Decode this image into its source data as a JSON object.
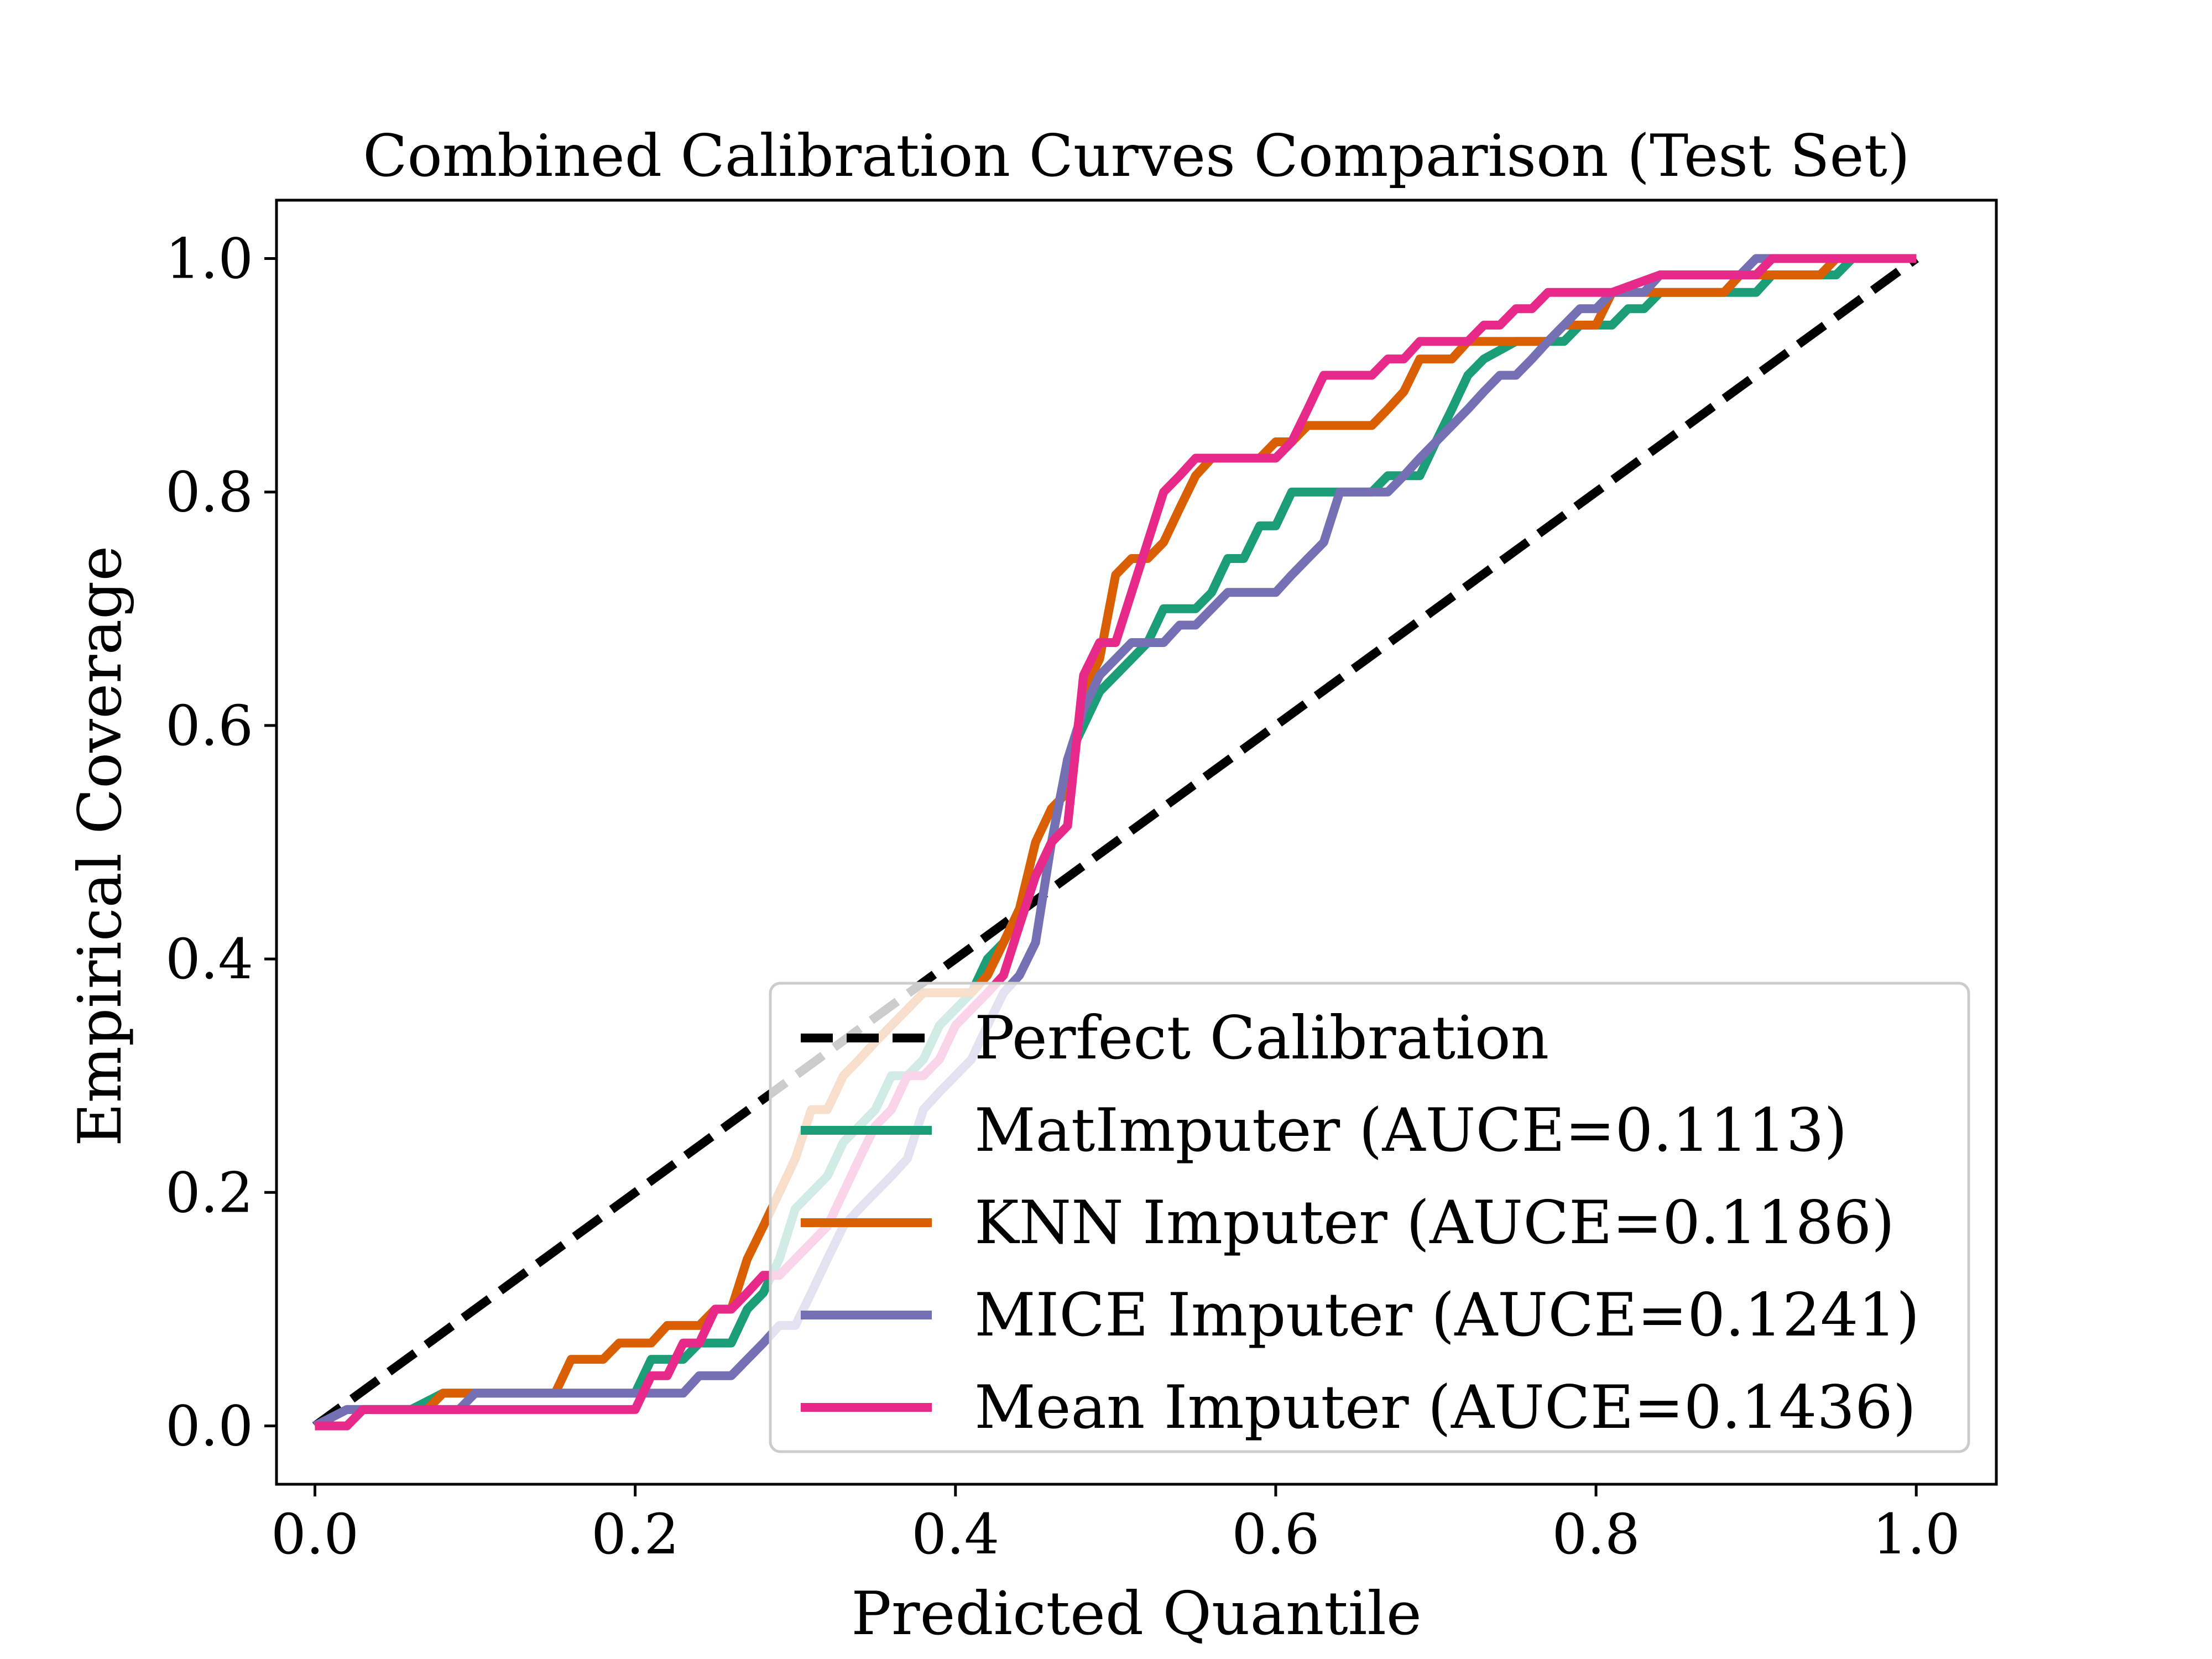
{
  "chart_data": {
    "type": "line",
    "title": "Combined Calibration Curves Comparison (Test Set)",
    "xlabel": "Predicted Quantile",
    "ylabel": "Empirical Coverage",
    "xlim": [
      -0.024,
      1.05
    ],
    "ylim": [
      -0.05,
      1.05
    ],
    "x_ticks": [
      0.0,
      0.2,
      0.4,
      0.6,
      0.8,
      1.0
    ],
    "x_tick_labels": [
      "0.0",
      "0.2",
      "0.4",
      "0.6",
      "0.8",
      "1.0"
    ],
    "y_ticks": [
      0.0,
      0.2,
      0.4,
      0.6,
      0.8,
      1.0
    ],
    "y_tick_labels": [
      "0.0",
      "0.2",
      "0.4",
      "0.6",
      "0.8",
      "1.0"
    ],
    "grid": false,
    "legend_position": "lower-right",
    "series": [
      {
        "name": "Perfect Calibration",
        "color": "#000000",
        "style": "dashed",
        "points": [
          [
            0.0,
            0.0
          ],
          [
            1.0,
            1.0
          ]
        ]
      },
      {
        "name": "MatImputer (AUCE=0.1113)",
        "color": "#1b9e77",
        "style": "solid",
        "points": [
          [
            0.0,
            0.0
          ],
          [
            0.02,
            0.014
          ],
          [
            0.04,
            0.014
          ],
          [
            0.06,
            0.014
          ],
          [
            0.08,
            0.028
          ],
          [
            0.1,
            0.028
          ],
          [
            0.12,
            0.028
          ],
          [
            0.14,
            0.028
          ],
          [
            0.16,
            0.028
          ],
          [
            0.18,
            0.028
          ],
          [
            0.2,
            0.028
          ],
          [
            0.21,
            0.057
          ],
          [
            0.22,
            0.057
          ],
          [
            0.23,
            0.057
          ],
          [
            0.24,
            0.071
          ],
          [
            0.26,
            0.071
          ],
          [
            0.27,
            0.1
          ],
          [
            0.28,
            0.114
          ],
          [
            0.29,
            0.143
          ],
          [
            0.3,
            0.186
          ],
          [
            0.31,
            0.2
          ],
          [
            0.32,
            0.214
          ],
          [
            0.33,
            0.243
          ],
          [
            0.34,
            0.257
          ],
          [
            0.35,
            0.271
          ],
          [
            0.36,
            0.3
          ],
          [
            0.37,
            0.3
          ],
          [
            0.38,
            0.314
          ],
          [
            0.39,
            0.343
          ],
          [
            0.4,
            0.357
          ],
          [
            0.41,
            0.371
          ],
          [
            0.42,
            0.4
          ],
          [
            0.43,
            0.414
          ],
          [
            0.44,
            0.443
          ],
          [
            0.45,
            0.471
          ],
          [
            0.46,
            0.5
          ],
          [
            0.47,
            0.571
          ],
          [
            0.48,
            0.6
          ],
          [
            0.49,
            0.629
          ],
          [
            0.5,
            0.643
          ],
          [
            0.52,
            0.671
          ],
          [
            0.53,
            0.7
          ],
          [
            0.55,
            0.7
          ],
          [
            0.56,
            0.714
          ],
          [
            0.57,
            0.743
          ],
          [
            0.58,
            0.743
          ],
          [
            0.59,
            0.771
          ],
          [
            0.6,
            0.771
          ],
          [
            0.61,
            0.8
          ],
          [
            0.63,
            0.8
          ],
          [
            0.66,
            0.8
          ],
          [
            0.67,
            0.814
          ],
          [
            0.69,
            0.814
          ],
          [
            0.7,
            0.843
          ],
          [
            0.71,
            0.871
          ],
          [
            0.72,
            0.9
          ],
          [
            0.73,
            0.914
          ],
          [
            0.75,
            0.929
          ],
          [
            0.77,
            0.929
          ],
          [
            0.78,
            0.929
          ],
          [
            0.79,
            0.943
          ],
          [
            0.81,
            0.943
          ],
          [
            0.82,
            0.957
          ],
          [
            0.83,
            0.957
          ],
          [
            0.84,
            0.971
          ],
          [
            0.86,
            0.971
          ],
          [
            0.9,
            0.971
          ],
          [
            0.91,
            0.986
          ],
          [
            0.95,
            0.986
          ],
          [
            0.96,
            1.0
          ],
          [
            1.0,
            1.0
          ]
        ]
      },
      {
        "name": "KNN Imputer (AUCE=0.1186)",
        "color": "#d95f02",
        "style": "solid",
        "points": [
          [
            0.0,
            0.0
          ],
          [
            0.02,
            0.0
          ],
          [
            0.03,
            0.014
          ],
          [
            0.05,
            0.014
          ],
          [
            0.07,
            0.014
          ],
          [
            0.08,
            0.028
          ],
          [
            0.1,
            0.028
          ],
          [
            0.14,
            0.028
          ],
          [
            0.15,
            0.028
          ],
          [
            0.16,
            0.057
          ],
          [
            0.18,
            0.057
          ],
          [
            0.19,
            0.071
          ],
          [
            0.21,
            0.071
          ],
          [
            0.22,
            0.086
          ],
          [
            0.24,
            0.086
          ],
          [
            0.25,
            0.1
          ],
          [
            0.26,
            0.1
          ],
          [
            0.27,
            0.143
          ],
          [
            0.28,
            0.171
          ],
          [
            0.29,
            0.2
          ],
          [
            0.3,
            0.229
          ],
          [
            0.31,
            0.271
          ],
          [
            0.32,
            0.271
          ],
          [
            0.33,
            0.3
          ],
          [
            0.34,
            0.314
          ],
          [
            0.35,
            0.329
          ],
          [
            0.36,
            0.343
          ],
          [
            0.37,
            0.357
          ],
          [
            0.38,
            0.371
          ],
          [
            0.39,
            0.371
          ],
          [
            0.4,
            0.371
          ],
          [
            0.41,
            0.371
          ],
          [
            0.42,
            0.386
          ],
          [
            0.43,
            0.414
          ],
          [
            0.44,
            0.443
          ],
          [
            0.45,
            0.5
          ],
          [
            0.46,
            0.529
          ],
          [
            0.47,
            0.543
          ],
          [
            0.48,
            0.629
          ],
          [
            0.49,
            0.657
          ],
          [
            0.5,
            0.729
          ],
          [
            0.51,
            0.743
          ],
          [
            0.52,
            0.743
          ],
          [
            0.53,
            0.757
          ],
          [
            0.54,
            0.786
          ],
          [
            0.55,
            0.814
          ],
          [
            0.56,
            0.829
          ],
          [
            0.58,
            0.829
          ],
          [
            0.59,
            0.829
          ],
          [
            0.6,
            0.843
          ],
          [
            0.61,
            0.843
          ],
          [
            0.62,
            0.857
          ],
          [
            0.64,
            0.857
          ],
          [
            0.66,
            0.857
          ],
          [
            0.67,
            0.871
          ],
          [
            0.68,
            0.886
          ],
          [
            0.69,
            0.914
          ],
          [
            0.71,
            0.914
          ],
          [
            0.72,
            0.929
          ],
          [
            0.74,
            0.929
          ],
          [
            0.77,
            0.929
          ],
          [
            0.78,
            0.943
          ],
          [
            0.8,
            0.943
          ],
          [
            0.81,
            0.971
          ],
          [
            0.83,
            0.971
          ],
          [
            0.85,
            0.971
          ],
          [
            0.86,
            0.971
          ],
          [
            0.88,
            0.971
          ],
          [
            0.89,
            0.986
          ],
          [
            0.92,
            0.986
          ],
          [
            0.94,
            0.986
          ],
          [
            0.95,
            1.0
          ],
          [
            1.0,
            1.0
          ]
        ]
      },
      {
        "name": "MICE Imputer (AUCE=0.1241)",
        "color": "#7570b3",
        "style": "solid",
        "points": [
          [
            0.0,
            0.0
          ],
          [
            0.02,
            0.014
          ],
          [
            0.04,
            0.014
          ],
          [
            0.06,
            0.014
          ],
          [
            0.08,
            0.014
          ],
          [
            0.09,
            0.014
          ],
          [
            0.1,
            0.028
          ],
          [
            0.12,
            0.028
          ],
          [
            0.16,
            0.028
          ],
          [
            0.2,
            0.028
          ],
          [
            0.22,
            0.028
          ],
          [
            0.23,
            0.028
          ],
          [
            0.24,
            0.043
          ],
          [
            0.26,
            0.043
          ],
          [
            0.27,
            0.057
          ],
          [
            0.28,
            0.071
          ],
          [
            0.29,
            0.086
          ],
          [
            0.3,
            0.086
          ],
          [
            0.31,
            0.114
          ],
          [
            0.32,
            0.143
          ],
          [
            0.33,
            0.171
          ],
          [
            0.34,
            0.186
          ],
          [
            0.35,
            0.2
          ],
          [
            0.36,
            0.214
          ],
          [
            0.37,
            0.229
          ],
          [
            0.38,
            0.271
          ],
          [
            0.39,
            0.286
          ],
          [
            0.4,
            0.3
          ],
          [
            0.41,
            0.314
          ],
          [
            0.42,
            0.343
          ],
          [
            0.43,
            0.371
          ],
          [
            0.44,
            0.386
          ],
          [
            0.45,
            0.414
          ],
          [
            0.46,
            0.5
          ],
          [
            0.47,
            0.571
          ],
          [
            0.48,
            0.614
          ],
          [
            0.49,
            0.643
          ],
          [
            0.5,
            0.657
          ],
          [
            0.51,
            0.671
          ],
          [
            0.52,
            0.671
          ],
          [
            0.53,
            0.671
          ],
          [
            0.54,
            0.686
          ],
          [
            0.55,
            0.686
          ],
          [
            0.56,
            0.7
          ],
          [
            0.57,
            0.714
          ],
          [
            0.59,
            0.714
          ],
          [
            0.6,
            0.714
          ],
          [
            0.61,
            0.729
          ],
          [
            0.62,
            0.743
          ],
          [
            0.63,
            0.757
          ],
          [
            0.64,
            0.8
          ],
          [
            0.66,
            0.8
          ],
          [
            0.67,
            0.8
          ],
          [
            0.68,
            0.814
          ],
          [
            0.69,
            0.829
          ],
          [
            0.7,
            0.843
          ],
          [
            0.71,
            0.857
          ],
          [
            0.72,
            0.871
          ],
          [
            0.73,
            0.886
          ],
          [
            0.74,
            0.9
          ],
          [
            0.75,
            0.9
          ],
          [
            0.76,
            0.914
          ],
          [
            0.77,
            0.929
          ],
          [
            0.78,
            0.943
          ],
          [
            0.79,
            0.957
          ],
          [
            0.8,
            0.957
          ],
          [
            0.81,
            0.971
          ],
          [
            0.83,
            0.971
          ],
          [
            0.84,
            0.986
          ],
          [
            0.86,
            0.986
          ],
          [
            0.88,
            0.986
          ],
          [
            0.89,
            0.986
          ],
          [
            0.9,
            1.0
          ],
          [
            1.0,
            1.0
          ]
        ]
      },
      {
        "name": "Mean Imputer (AUCE=0.1436)",
        "color": "#e7298a",
        "style": "solid",
        "points": [
          [
            0.0,
            0.0
          ],
          [
            0.02,
            0.0
          ],
          [
            0.03,
            0.014
          ],
          [
            0.05,
            0.014
          ],
          [
            0.08,
            0.014
          ],
          [
            0.1,
            0.014
          ],
          [
            0.12,
            0.014
          ],
          [
            0.14,
            0.014
          ],
          [
            0.2,
            0.014
          ],
          [
            0.21,
            0.043
          ],
          [
            0.22,
            0.043
          ],
          [
            0.23,
            0.071
          ],
          [
            0.24,
            0.071
          ],
          [
            0.25,
            0.1
          ],
          [
            0.26,
            0.1
          ],
          [
            0.27,
            0.114
          ],
          [
            0.28,
            0.129
          ],
          [
            0.29,
            0.129
          ],
          [
            0.3,
            0.143
          ],
          [
            0.31,
            0.157
          ],
          [
            0.32,
            0.171
          ],
          [
            0.33,
            0.2
          ],
          [
            0.34,
            0.229
          ],
          [
            0.35,
            0.257
          ],
          [
            0.36,
            0.271
          ],
          [
            0.37,
            0.3
          ],
          [
            0.38,
            0.3
          ],
          [
            0.39,
            0.314
          ],
          [
            0.4,
            0.343
          ],
          [
            0.41,
            0.357
          ],
          [
            0.42,
            0.371
          ],
          [
            0.43,
            0.386
          ],
          [
            0.44,
            0.429
          ],
          [
            0.45,
            0.471
          ],
          [
            0.46,
            0.5
          ],
          [
            0.47,
            0.514
          ],
          [
            0.48,
            0.643
          ],
          [
            0.49,
            0.671
          ],
          [
            0.5,
            0.671
          ],
          [
            0.51,
            0.714
          ],
          [
            0.52,
            0.757
          ],
          [
            0.53,
            0.8
          ],
          [
            0.54,
            0.814
          ],
          [
            0.55,
            0.829
          ],
          [
            0.57,
            0.829
          ],
          [
            0.6,
            0.829
          ],
          [
            0.61,
            0.843
          ],
          [
            0.62,
            0.871
          ],
          [
            0.63,
            0.9
          ],
          [
            0.64,
            0.9
          ],
          [
            0.66,
            0.9
          ],
          [
            0.67,
            0.914
          ],
          [
            0.68,
            0.914
          ],
          [
            0.69,
            0.929
          ],
          [
            0.71,
            0.929
          ],
          [
            0.72,
            0.929
          ],
          [
            0.73,
            0.943
          ],
          [
            0.74,
            0.943
          ],
          [
            0.75,
            0.957
          ],
          [
            0.76,
            0.957
          ],
          [
            0.77,
            0.971
          ],
          [
            0.79,
            0.971
          ],
          [
            0.81,
            0.971
          ],
          [
            0.84,
            0.986
          ],
          [
            0.87,
            0.986
          ],
          [
            0.9,
            0.986
          ],
          [
            0.91,
            1.0
          ],
          [
            1.0,
            1.0
          ]
        ]
      }
    ]
  }
}
